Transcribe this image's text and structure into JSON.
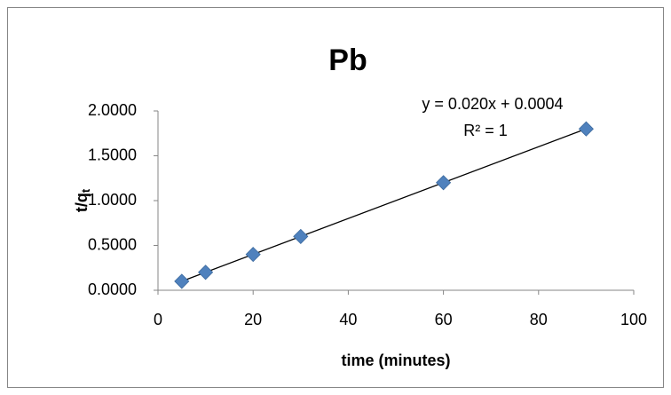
{
  "chart_data": {
    "type": "scatter",
    "title": "Pb",
    "x_label": "time (minutes)",
    "y_label": "t/q",
    "y_label_subscript": "t",
    "series": [
      {
        "name": "Pb",
        "color": "#4f81bd",
        "x": [
          5,
          10,
          20,
          30,
          60,
          90
        ],
        "values": [
          0.1,
          0.2,
          0.4,
          0.6,
          1.2,
          1.8
        ]
      }
    ],
    "trendline": {
      "slope": 0.02,
      "intercept": 0.0004,
      "equation": "y = 0.020x + 0.0004",
      "r_squared": "R² = 1",
      "color": "#000000"
    },
    "xlim": [
      0,
      100
    ],
    "xticks": [
      0,
      20,
      40,
      60,
      80,
      100
    ],
    "ylim": [
      0,
      2
    ],
    "yticks": [
      {
        "value": 0,
        "label": "0.0000"
      },
      {
        "value": 0.5,
        "label": "0.5000"
      },
      {
        "value": 1,
        "label": "1.0000"
      },
      {
        "value": 1.5,
        "label": "1.5000"
      },
      {
        "value": 2,
        "label": "2.0000"
      }
    ],
    "grid": false,
    "legend": false
  }
}
